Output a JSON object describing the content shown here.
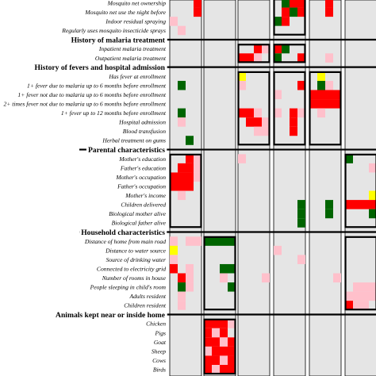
{
  "chart_data": {
    "type": "heatmap",
    "title": "",
    "xlabel": "",
    "ylabel": "",
    "legend": "none",
    "colors": {
      "background": "#e5e5e5",
      "red": "#ff0000",
      "pink": "#ffc0cb",
      "green": "#006400",
      "yellow": "#ffff00"
    },
    "column_count": 7,
    "rows": [
      {
        "label": "Mosquito net ownership",
        "kind": "item"
      },
      {
        "label": "Mosquito net use the night before",
        "kind": "item"
      },
      {
        "label": "Indoor residual spraying",
        "kind": "item"
      },
      {
        "label": "Regularly uses mosquito insecticide sprays",
        "kind": "item"
      },
      {
        "label": "History of malaria treatment",
        "kind": "section"
      },
      {
        "label": "Inpatient malaria treatment",
        "kind": "item"
      },
      {
        "label": "Outpatient malaria treatment",
        "kind": "item"
      },
      {
        "label": "History of fevers and hospital admission",
        "kind": "section"
      },
      {
        "label": "Has fever at enrollment",
        "kind": "item"
      },
      {
        "label": "1+ fever due to malaria up to 6 months before enrollment",
        "kind": "item"
      },
      {
        "label": "1+ fever not due to malaria up to 6 months before enrollment",
        "kind": "item"
      },
      {
        "label": "2+ times fever not due to malaria up to 6 months before enrollment",
        "kind": "item"
      },
      {
        "label": "1+ fever up to 12 months before enrollment",
        "kind": "item"
      },
      {
        "label": "Hospital admission",
        "kind": "item"
      },
      {
        "label": "Blood transfusion",
        "kind": "item"
      },
      {
        "label": "Herbal treatment on gums",
        "kind": "item"
      },
      {
        "label": "Parental characteristics",
        "kind": "section"
      },
      {
        "label": "Mother's education",
        "kind": "item"
      },
      {
        "label": "Father's education",
        "kind": "item"
      },
      {
        "label": "Mother's occupation",
        "kind": "item"
      },
      {
        "label": "Father's occupation",
        "kind": "item"
      },
      {
        "label": "Mother's income",
        "kind": "item"
      },
      {
        "label": "Children delivered",
        "kind": "item"
      },
      {
        "label": "Biological mother alive",
        "kind": "item"
      },
      {
        "label": "Biological father alive",
        "kind": "item"
      },
      {
        "label": "Household characteristics",
        "kind": "section"
      },
      {
        "label": "Distance of home from main road",
        "kind": "item"
      },
      {
        "label": "Distance to water source",
        "kind": "item"
      },
      {
        "label": "Source of drinking water",
        "kind": "item"
      },
      {
        "label": "Connected to electricity grid",
        "kind": "item"
      },
      {
        "label": "Number of rooms in house",
        "kind": "item"
      },
      {
        "label": "People sleeping in child's room",
        "kind": "item"
      },
      {
        "label": "Adults resident",
        "kind": "item"
      },
      {
        "label": "Children resident",
        "kind": "item"
      },
      {
        "label": "Animals kept near or inside home",
        "kind": "section"
      },
      {
        "label": "Chicken",
        "kind": "item"
      },
      {
        "label": "Pigs",
        "kind": "item"
      },
      {
        "label": "Goat",
        "kind": "item"
      },
      {
        "label": "Sheep",
        "kind": "item"
      },
      {
        "label": "Cows",
        "kind": "item"
      },
      {
        "label": "Birds",
        "kind": "item"
      }
    ],
    "cells": [
      {
        "column": 1,
        "row": 0,
        "subcolumn": 3,
        "color": "red"
      },
      {
        "column": 1,
        "row": 1,
        "subcolumn": 3,
        "color": "red"
      },
      {
        "column": 1,
        "row": 2,
        "subcolumn": 0,
        "color": "pink"
      },
      {
        "column": 1,
        "row": 3,
        "subcolumn": 1,
        "color": "pink"
      },
      {
        "column": 1,
        "row": 9,
        "subcolumn": 1,
        "color": "green"
      },
      {
        "column": 1,
        "row": 12,
        "subcolumn": 1,
        "color": "green"
      },
      {
        "column": 1,
        "row": 13,
        "subcolumn": 1,
        "color": "pink"
      },
      {
        "column": 1,
        "row": 15,
        "subcolumn": 2,
        "color": "green"
      },
      {
        "column": 1,
        "row": 17,
        "subcolumn": 2,
        "color": "red"
      },
      {
        "column": 1,
        "row": 17,
        "subcolumn": 3,
        "color": "pink"
      },
      {
        "column": 1,
        "row": 18,
        "subcolumn": 1,
        "color": "red"
      },
      {
        "column": 1,
        "row": 18,
        "subcolumn": 2,
        "color": "red"
      },
      {
        "column": 1,
        "row": 18,
        "subcolumn": 3,
        "color": "pink"
      },
      {
        "column": 1,
        "row": 19,
        "subcolumn": 0,
        "color": "red"
      },
      {
        "column": 1,
        "row": 19,
        "subcolumn": 1,
        "color": "red"
      },
      {
        "column": 1,
        "row": 19,
        "subcolumn": 2,
        "color": "red"
      },
      {
        "column": 1,
        "row": 19,
        "subcolumn": 3,
        "color": "pink"
      },
      {
        "column": 1,
        "row": 20,
        "subcolumn": 0,
        "color": "red"
      },
      {
        "column": 1,
        "row": 20,
        "subcolumn": 1,
        "color": "red"
      },
      {
        "column": 1,
        "row": 20,
        "subcolumn": 2,
        "color": "red"
      },
      {
        "column": 1,
        "row": 21,
        "subcolumn": 1,
        "color": "pink"
      },
      {
        "column": 1,
        "row": 26,
        "subcolumn": 0,
        "color": "pink"
      },
      {
        "column": 1,
        "row": 26,
        "subcolumn": 2,
        "color": "pink"
      },
      {
        "column": 1,
        "row": 26,
        "subcolumn": 3,
        "color": "pink"
      },
      {
        "column": 1,
        "row": 27,
        "subcolumn": 0,
        "color": "yellow"
      },
      {
        "column": 1,
        "row": 28,
        "subcolumn": 0,
        "color": "pink"
      },
      {
        "column": 1,
        "row": 29,
        "subcolumn": 0,
        "color": "red"
      },
      {
        "column": 1,
        "row": 29,
        "subcolumn": 2,
        "color": "pink"
      },
      {
        "column": 1,
        "row": 30,
        "subcolumn": 1,
        "color": "red"
      },
      {
        "column": 1,
        "row": 30,
        "subcolumn": 2,
        "color": "pink"
      },
      {
        "column": 1,
        "row": 31,
        "subcolumn": 1,
        "color": "green"
      },
      {
        "column": 1,
        "row": 31,
        "subcolumn": 2,
        "color": "pink"
      },
      {
        "column": 1,
        "row": 32,
        "subcolumn": 1,
        "color": "pink"
      },
      {
        "column": 1,
        "row": 33,
        "subcolumn": 1,
        "color": "pink"
      },
      {
        "column": 2,
        "row": 26,
        "subcolumn": 0,
        "color": "green"
      },
      {
        "column": 2,
        "row": 26,
        "subcolumn": 1,
        "color": "green"
      },
      {
        "column": 2,
        "row": 26,
        "subcolumn": 2,
        "color": "green"
      },
      {
        "column": 2,
        "row": 26,
        "subcolumn": 3,
        "color": "green"
      },
      {
        "column": 2,
        "row": 29,
        "subcolumn": 2,
        "color": "green"
      },
      {
        "column": 2,
        "row": 29,
        "subcolumn": 3,
        "color": "green"
      },
      {
        "column": 2,
        "row": 30,
        "subcolumn": 2,
        "color": "pink"
      },
      {
        "column": 2,
        "row": 31,
        "subcolumn": 3,
        "color": "green"
      },
      {
        "column": 2,
        "row": 35,
        "subcolumn": 0,
        "color": "red"
      },
      {
        "column": 2,
        "row": 35,
        "subcolumn": 1,
        "color": "red"
      },
      {
        "column": 2,
        "row": 35,
        "subcolumn": 2,
        "color": "red"
      },
      {
        "column": 2,
        "row": 35,
        "subcolumn": 3,
        "color": "pink"
      },
      {
        "column": 2,
        "row": 36,
        "subcolumn": 0,
        "color": "red"
      },
      {
        "column": 2,
        "row": 36,
        "subcolumn": 1,
        "color": "pink"
      },
      {
        "column": 2,
        "row": 36,
        "subcolumn": 2,
        "color": "red"
      },
      {
        "column": 2,
        "row": 37,
        "subcolumn": 0,
        "color": "red"
      },
      {
        "column": 2,
        "row": 37,
        "subcolumn": 1,
        "color": "red"
      },
      {
        "column": 2,
        "row": 37,
        "subcolumn": 2,
        "color": "pink"
      },
      {
        "column": 2,
        "row": 37,
        "subcolumn": 3,
        "color": "red"
      },
      {
        "column": 2,
        "row": 38,
        "subcolumn": 0,
        "color": "pink"
      },
      {
        "column": 2,
        "row": 38,
        "subcolumn": 1,
        "color": "red"
      },
      {
        "column": 2,
        "row": 38,
        "subcolumn": 2,
        "color": "red"
      },
      {
        "column": 2,
        "row": 38,
        "subcolumn": 3,
        "color": "red"
      },
      {
        "column": 2,
        "row": 39,
        "subcolumn": 0,
        "color": "red"
      },
      {
        "column": 2,
        "row": 39,
        "subcolumn": 1,
        "color": "red"
      },
      {
        "column": 2,
        "row": 39,
        "subcolumn": 2,
        "color": "pink"
      },
      {
        "column": 2,
        "row": 39,
        "subcolumn": 3,
        "color": "red"
      },
      {
        "column": 2,
        "row": 40,
        "subcolumn": 0,
        "color": "red"
      },
      {
        "column": 2,
        "row": 40,
        "subcolumn": 1,
        "color": "pink"
      },
      {
        "column": 2,
        "row": 40,
        "subcolumn": 2,
        "color": "red"
      },
      {
        "column": 2,
        "row": 40,
        "subcolumn": 3,
        "color": "red"
      },
      {
        "column": 3,
        "row": 5,
        "subcolumn": 2,
        "color": "red"
      },
      {
        "column": 3,
        "row": 5,
        "subcolumn": 3,
        "color": "pink"
      },
      {
        "column": 3,
        "row": 6,
        "subcolumn": 0,
        "color": "red"
      },
      {
        "column": 3,
        "row": 6,
        "subcolumn": 1,
        "color": "red"
      },
      {
        "column": 3,
        "row": 6,
        "subcolumn": 2,
        "color": "pink"
      },
      {
        "column": 3,
        "row": 8,
        "subcolumn": 0,
        "color": "yellow"
      },
      {
        "column": 3,
        "row": 9,
        "subcolumn": 0,
        "color": "pink"
      },
      {
        "column": 3,
        "row": 12,
        "subcolumn": 0,
        "color": "red"
      },
      {
        "column": 3,
        "row": 12,
        "subcolumn": 1,
        "color": "red"
      },
      {
        "column": 3,
        "row": 12,
        "subcolumn": 2,
        "color": "pink"
      },
      {
        "column": 3,
        "row": 13,
        "subcolumn": 1,
        "color": "red"
      },
      {
        "column": 3,
        "row": 13,
        "subcolumn": 2,
        "color": "red"
      },
      {
        "column": 3,
        "row": 13,
        "subcolumn": 3,
        "color": "pink"
      },
      {
        "column": 3,
        "row": 14,
        "subcolumn": 2,
        "color": "pink"
      },
      {
        "column": 3,
        "row": 14,
        "subcolumn": 3,
        "color": "pink"
      },
      {
        "column": 3,
        "row": 17,
        "subcolumn": 0,
        "color": "pink"
      },
      {
        "column": 3,
        "row": 30,
        "subcolumn": 3,
        "color": "pink"
      },
      {
        "column": 4,
        "row": 0,
        "subcolumn": 1,
        "color": "green"
      },
      {
        "column": 4,
        "row": 0,
        "subcolumn": 2,
        "color": "red"
      },
      {
        "column": 4,
        "row": 0,
        "subcolumn": 3,
        "color": "red"
      },
      {
        "column": 4,
        "row": 1,
        "subcolumn": 1,
        "color": "red"
      },
      {
        "column": 4,
        "row": 1,
        "subcolumn": 2,
        "color": "green"
      },
      {
        "column": 4,
        "row": 1,
        "subcolumn": 3,
        "color": "red"
      },
      {
        "column": 4,
        "row": 2,
        "subcolumn": 0,
        "color": "green"
      },
      {
        "column": 4,
        "row": 2,
        "subcolumn": 1,
        "color": "red"
      },
      {
        "column": 4,
        "row": 5,
        "subcolumn": 0,
        "color": "red"
      },
      {
        "column": 4,
        "row": 5,
        "subcolumn": 1,
        "color": "green"
      },
      {
        "column": 4,
        "row": 6,
        "subcolumn": 0,
        "color": "green"
      },
      {
        "column": 4,
        "row": 6,
        "subcolumn": 3,
        "color": "red"
      },
      {
        "column": 4,
        "row": 9,
        "subcolumn": 3,
        "color": "red"
      },
      {
        "column": 4,
        "row": 10,
        "subcolumn": 0,
        "color": "pink"
      },
      {
        "column": 4,
        "row": 12,
        "subcolumn": 0,
        "color": "pink"
      },
      {
        "column": 4,
        "row": 12,
        "subcolumn": 2,
        "color": "red"
      },
      {
        "column": 4,
        "row": 12,
        "subcolumn": 3,
        "color": "pink"
      },
      {
        "column": 4,
        "row": 13,
        "subcolumn": 2,
        "color": "red"
      },
      {
        "column": 4,
        "row": 14,
        "subcolumn": 2,
        "color": "red"
      },
      {
        "column": 4,
        "row": 22,
        "subcolumn": 3,
        "color": "green"
      },
      {
        "column": 4,
        "row": 23,
        "subcolumn": 3,
        "color": "green"
      },
      {
        "column": 4,
        "row": 24,
        "subcolumn": 3,
        "color": "green"
      },
      {
        "column": 4,
        "row": 27,
        "subcolumn": 0,
        "color": "pink"
      },
      {
        "column": 4,
        "row": 28,
        "subcolumn": 3,
        "color": "pink"
      },
      {
        "column": 5,
        "row": 0,
        "subcolumn": 2,
        "color": "red"
      },
      {
        "column": 5,
        "row": 1,
        "subcolumn": 2,
        "color": "red"
      },
      {
        "column": 5,
        "row": 6,
        "subcolumn": 2,
        "color": "pink"
      },
      {
        "column": 5,
        "row": 8,
        "subcolumn": 1,
        "color": "yellow"
      },
      {
        "column": 5,
        "row": 9,
        "subcolumn": 1,
        "color": "green"
      },
      {
        "column": 5,
        "row": 9,
        "subcolumn": 2,
        "color": "pink"
      },
      {
        "column": 5,
        "row": 10,
        "subcolumn": 0,
        "color": "red"
      },
      {
        "column": 5,
        "row": 10,
        "subcolumn": 1,
        "color": "red"
      },
      {
        "column": 5,
        "row": 10,
        "subcolumn": 2,
        "color": "red"
      },
      {
        "column": 5,
        "row": 10,
        "subcolumn": 3,
        "color": "red"
      },
      {
        "column": 5,
        "row": 11,
        "subcolumn": 0,
        "color": "red"
      },
      {
        "column": 5,
        "row": 11,
        "subcolumn": 1,
        "color": "red"
      },
      {
        "column": 5,
        "row": 11,
        "subcolumn": 2,
        "color": "red"
      },
      {
        "column": 5,
        "row": 11,
        "subcolumn": 3,
        "color": "red"
      },
      {
        "column": 5,
        "row": 12,
        "subcolumn": 1,
        "color": "pink"
      },
      {
        "column": 5,
        "row": 22,
        "subcolumn": 2,
        "color": "green"
      },
      {
        "column": 5,
        "row": 23,
        "subcolumn": 2,
        "color": "green"
      },
      {
        "column": 5,
        "row": 30,
        "subcolumn": 3,
        "color": "pink"
      },
      {
        "column": 6,
        "row": 17,
        "subcolumn": 0,
        "color": "green"
      },
      {
        "column": 6,
        "row": 18,
        "subcolumn": 3,
        "color": "pink"
      },
      {
        "column": 6,
        "row": 21,
        "subcolumn": 3,
        "color": "yellow"
      },
      {
        "column": 6,
        "row": 22,
        "subcolumn": 0,
        "color": "red"
      },
      {
        "column": 6,
        "row": 22,
        "subcolumn": 1,
        "color": "red"
      },
      {
        "column": 6,
        "row": 22,
        "subcolumn": 2,
        "color": "red"
      },
      {
        "column": 6,
        "row": 22,
        "subcolumn": 3,
        "color": "red"
      },
      {
        "column": 6,
        "row": 23,
        "subcolumn": 3,
        "color": "green"
      },
      {
        "column": 6,
        "row": 31,
        "subcolumn": 1,
        "color": "pink"
      },
      {
        "column": 6,
        "row": 31,
        "subcolumn": 2,
        "color": "pink"
      },
      {
        "column": 6,
        "row": 31,
        "subcolumn": 3,
        "color": "pink"
      },
      {
        "column": 6,
        "row": 32,
        "subcolumn": 0,
        "color": "pink"
      },
      {
        "column": 6,
        "row": 32,
        "subcolumn": 1,
        "color": "pink"
      },
      {
        "column": 6,
        "row": 32,
        "subcolumn": 2,
        "color": "pink"
      },
      {
        "column": 6,
        "row": 32,
        "subcolumn": 3,
        "color": "pink"
      },
      {
        "column": 6,
        "row": 33,
        "subcolumn": 0,
        "color": "red"
      },
      {
        "column": 6,
        "row": 33,
        "subcolumn": 1,
        "color": "pink"
      },
      {
        "column": 6,
        "row": 33,
        "subcolumn": 2,
        "color": "pink"
      }
    ],
    "boxes": [
      {
        "column": 1,
        "row_start": 17,
        "row_end": 24
      },
      {
        "column": 2,
        "row_start": 26,
        "row_end": 33
      },
      {
        "column": 2,
        "row_start": 35,
        "row_end": 40
      },
      {
        "column": 3,
        "row_start": 5,
        "row_end": 6
      },
      {
        "column": 3,
        "row_start": 8,
        "row_end": 15
      },
      {
        "column": 4,
        "row_start": 0,
        "row_end": 3
      },
      {
        "column": 4,
        "row_start": 5,
        "row_end": 6
      },
      {
        "column": 4,
        "row_start": 8,
        "row_end": 15
      },
      {
        "column": 5,
        "row_start": 8,
        "row_end": 15
      },
      {
        "column": 6,
        "row_start": 17,
        "row_end": 24
      },
      {
        "column": 6,
        "row_start": 26,
        "row_end": 33
      }
    ]
  }
}
